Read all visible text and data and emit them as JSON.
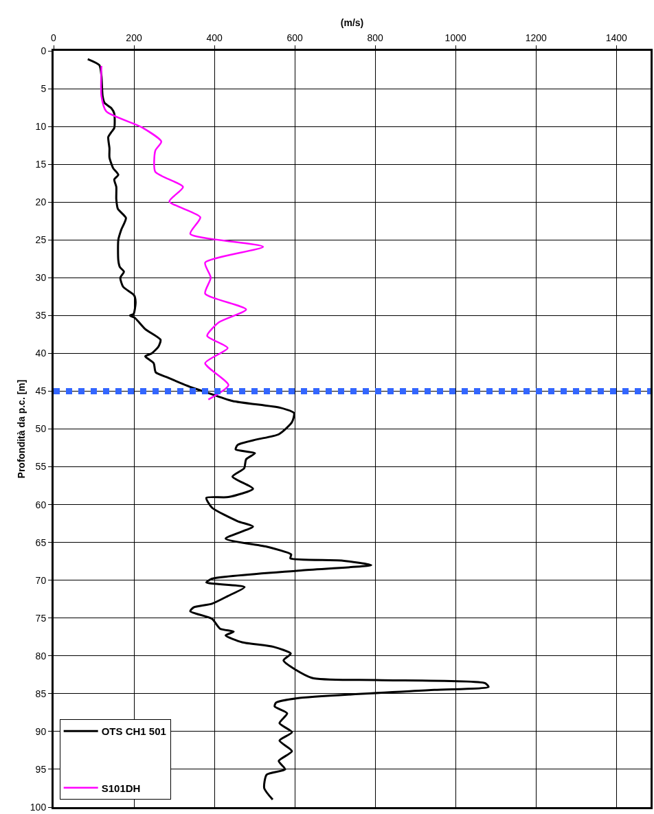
{
  "chart_data": {
    "type": "line",
    "xlabel": "(m/s)",
    "ylabel": "Profondità da p.c. [m]",
    "xlim": [
      0,
      1485
    ],
    "xticks": [
      0,
      200,
      400,
      600,
      800,
      1000,
      1200,
      1400
    ],
    "ylim": [
      100,
      0
    ],
    "yticks": [
      0,
      5,
      10,
      15,
      20,
      25,
      30,
      35,
      40,
      45,
      50,
      55,
      60,
      65,
      70,
      75,
      80,
      85,
      90,
      95,
      100
    ],
    "grid": true,
    "legend": "bottom left",
    "marker": "none",
    "line_style": "solid",
    "ref_lines": [
      {
        "axis": "y",
        "value": 45,
        "color": "#3366ff",
        "line_style": "dotted"
      }
    ],
    "series": [
      {
        "name": "OTS CH1 501",
        "color": "#000000",
        "x": [
          85,
          114,
          119,
          122,
          127,
          144,
          151,
          151,
          143,
          136,
          139,
          139,
          148,
          161,
          151,
          156,
          156,
          160,
          180,
          168,
          161,
          161,
          165,
          175,
          166,
          173,
          200,
          204,
          199,
          190,
          202,
          228,
          266,
          261,
          244,
          228,
          249,
          254,
          284,
          343,
          377,
          445,
          564,
          598,
          593,
          560,
          504,
          458,
          453,
          501,
          479,
          474,
          445,
          496,
          435,
          380,
          394,
          458,
          496,
          428,
          533,
          591,
          589,
          716,
          790,
          615,
          394,
          380,
          475,
          433,
          394,
          348,
          340,
          394,
          414,
          448,
          428,
          469,
          547,
          590,
          572,
          642,
          801,
          1073,
          1082,
          947,
          606,
          553,
          550,
          581,
          562,
          593,
          562,
          593,
          560,
          576,
          530,
          524,
          545
        ],
        "values": [
          1.1,
          1.9,
          3.3,
          6,
          6.9,
          7.6,
          8.3,
          10.2,
          10.8,
          11.4,
          12.9,
          14.1,
          15.5,
          16.4,
          17,
          18,
          19.6,
          20.9,
          22.1,
          23.7,
          25,
          27.7,
          28.6,
          29.2,
          30,
          31.2,
          32.3,
          33.2,
          34.8,
          35,
          35.3,
          36.8,
          38.2,
          39.1,
          40,
          40.4,
          41.3,
          42.5,
          43.2,
          44.5,
          45.1,
          46.3,
          47.2,
          47.9,
          49.1,
          50.7,
          51.4,
          52.1,
          52.7,
          53.2,
          54,
          55.2,
          56.3,
          57.9,
          59,
          59.1,
          60.4,
          62.2,
          62.9,
          64.5,
          65.6,
          66.6,
          67.1,
          67.4,
          68,
          68.7,
          69.8,
          70.3,
          70.9,
          72.1,
          73.1,
          73.6,
          74.1,
          75.1,
          76.4,
          76.8,
          77.3,
          78.2,
          78.8,
          79.7,
          80.6,
          82.9,
          83.2,
          83.6,
          84.1,
          84.5,
          85.6,
          86.2,
          86.7,
          87.6,
          88.9,
          90.1,
          91.2,
          92.6,
          93.9,
          95,
          95.7,
          97.5,
          99
        ]
      },
      {
        "name": "S101DH",
        "color": "#ff00ff",
        "x": [
          119,
          119,
          131,
          219,
          268,
          253,
          253,
          322,
          288,
          365,
          340,
          521,
          377,
          391,
          377,
          479,
          411,
          382,
          433,
          377,
          435,
          385
        ],
        "values": [
          2,
          6,
          8,
          10.1,
          12,
          13.2,
          16,
          18,
          19.9,
          22,
          24.2,
          25.9,
          28,
          30,
          32.1,
          34.2,
          35.9,
          37.7,
          39.3,
          41.3,
          44.2,
          46.1
        ]
      }
    ]
  }
}
